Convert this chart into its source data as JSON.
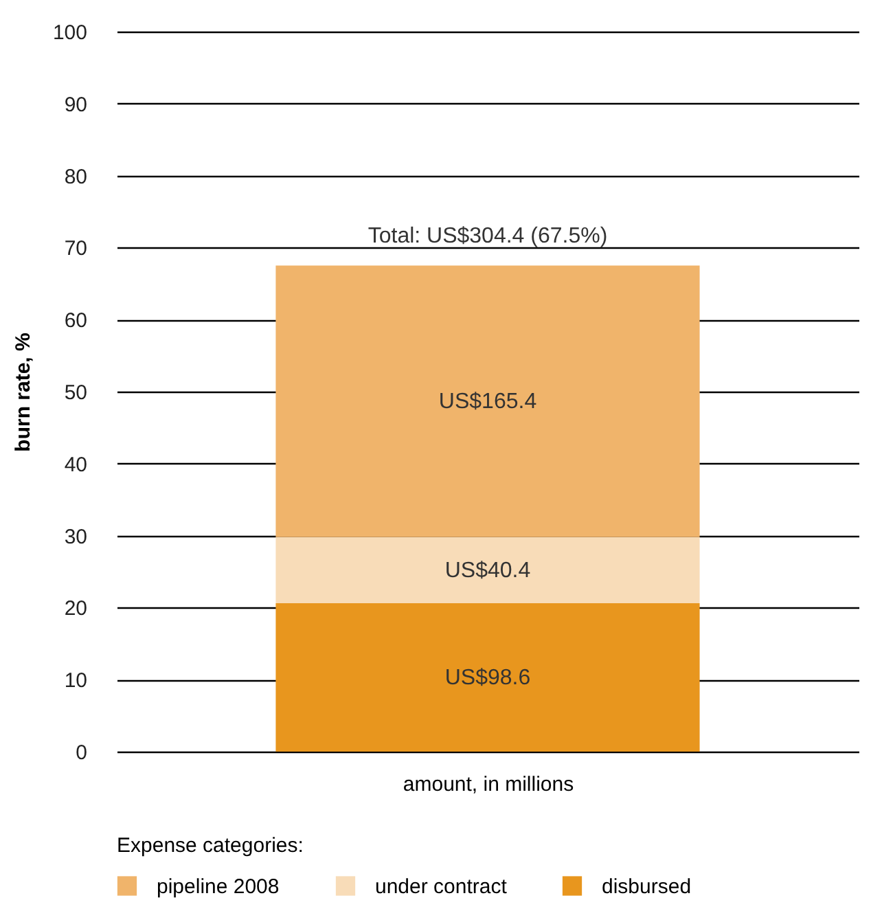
{
  "chart_data": {
    "type": "bar",
    "stacked": true,
    "categories": [
      null
    ],
    "xlabel": "amount, in millions",
    "ylabel": "burn rate, %",
    "ylim": [
      0,
      100
    ],
    "yticks": [
      0,
      10,
      20,
      30,
      40,
      50,
      60,
      70,
      80,
      90,
      100
    ],
    "grid": "y",
    "legend": "bottom",
    "legend_title": "Expense categories:",
    "series": [
      {
        "name": "disbursed",
        "color": "#e8961e",
        "values": [
          20.6
        ],
        "value_labels": [
          "US$98.6"
        ]
      },
      {
        "name": "under contract",
        "color": "#f8dcb8",
        "values": [
          9.2
        ],
        "value_labels": [
          "US$40.4"
        ]
      },
      {
        "name": "pipeline 2008",
        "color": "#f0b46b",
        "values": [
          37.7
        ],
        "value_labels": [
          "US$165.4"
        ]
      }
    ],
    "totals": [
      "Total: US$304.4 (67.5%)"
    ]
  }
}
